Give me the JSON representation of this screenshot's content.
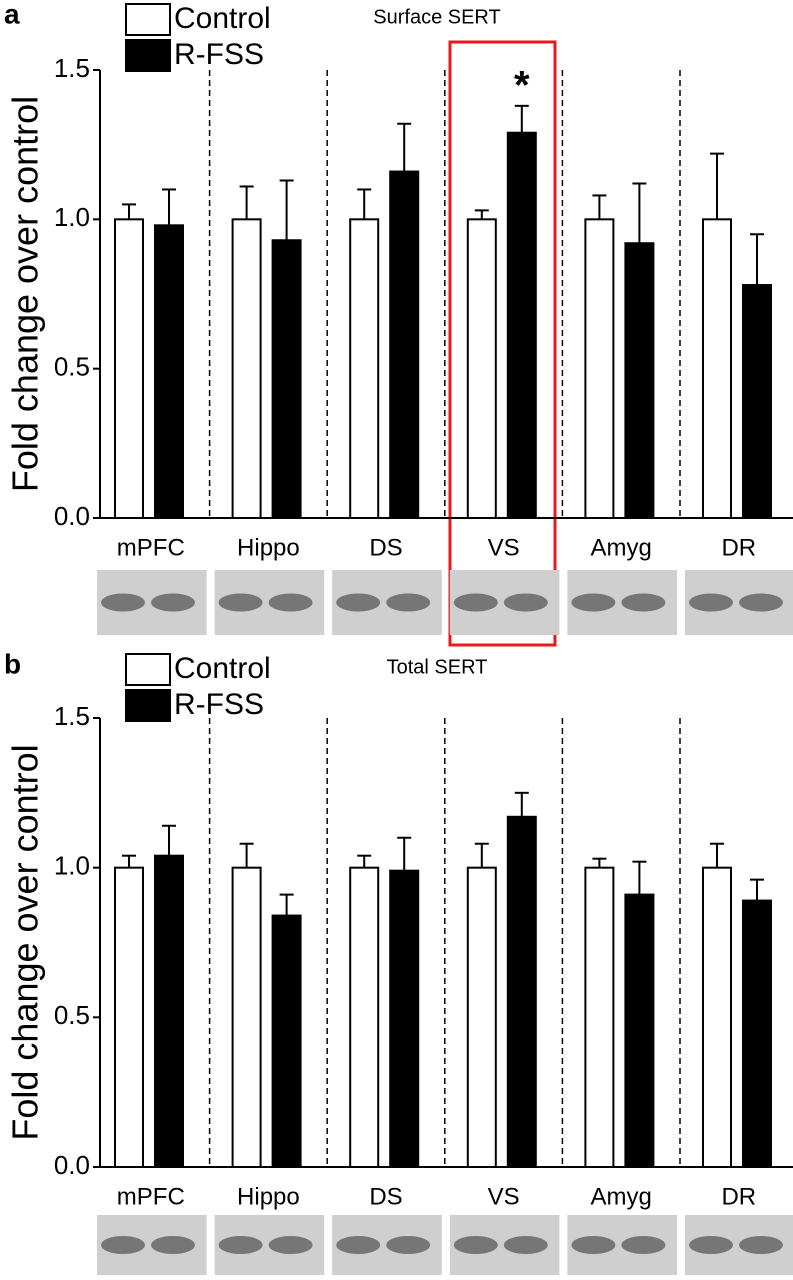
{
  "chart_data": [
    {
      "type": "bar",
      "panel": "a",
      "title": "Surface SERT",
      "y_label": "Fold change over control",
      "categories": [
        "mPFC",
        "Hippo",
        "DS",
        "VS",
        "Amyg",
        "DR"
      ],
      "series": [
        {
          "name": "Control",
          "color": "#ffffff",
          "values": [
            1.0,
            1.0,
            1.0,
            1.0,
            1.0,
            1.0
          ],
          "errors": [
            0.05,
            0.11,
            0.1,
            0.03,
            0.08,
            0.22
          ]
        },
        {
          "name": "R-FSS",
          "color": "#000000",
          "values": [
            0.98,
            0.93,
            1.16,
            1.29,
            0.92,
            0.78
          ],
          "errors": [
            0.12,
            0.2,
            0.16,
            0.09,
            0.2,
            0.17
          ]
        }
      ],
      "annotation": "*",
      "ylim": [
        0,
        1.5
      ],
      "yticks": [
        {
          "value": 0,
          "label": "0.0"
        },
        0.5,
        {
          "value": 1,
          "label": "1.0"
        },
        1.5
      ]
    },
    {
      "type": "bar",
      "panel": "b",
      "title": "Total SERT",
      "y_label": "Fold change over control",
      "categories": [
        "mPFC",
        "Hippo",
        "DS",
        "VS",
        "Amyg",
        "DR"
      ],
      "series": [
        {
          "name": "Control",
          "color": "#ffffff",
          "values": [
            1.0,
            1.0,
            1.0,
            1.0,
            1.0,
            1.0
          ],
          "errors": [
            0.04,
            0.08,
            0.04,
            0.08,
            0.03,
            0.08
          ]
        },
        {
          "name": "R-FSS",
          "color": "#000000",
          "values": [
            1.04,
            0.84,
            0.99,
            1.17,
            0.91,
            0.89
          ],
          "errors": [
            0.1,
            0.07,
            0.11,
            0.08,
            0.11,
            0.07
          ]
        }
      ],
      "ylim": [
        0,
        1.5
      ],
      "yticks": [
        {
          "value": 0,
          "label": "0.0"
        },
        0.5,
        {
          "value": 1,
          "label": "1.0"
        },
        1.5
      ]
    }
  ]
}
